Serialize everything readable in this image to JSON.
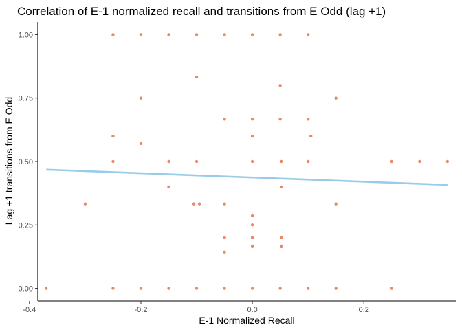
{
  "chart_data": {
    "type": "scatter",
    "title": "Correlation of E-1 normalized recall and transitions from E Odd (lag +1)",
    "xlabel": "E-1 Normalized Recall",
    "ylabel": "Lag +1 transitions from E Odd",
    "xlim": [
      -0.385,
      0.365
    ],
    "ylim": [
      -0.05,
      1.05
    ],
    "x_ticks": [
      -0.4,
      -0.2,
      0.0,
      0.2
    ],
    "x_tick_labels": [
      "-0.4",
      "-0.2",
      "0.0",
      "0.2"
    ],
    "y_ticks": [
      0.0,
      0.25,
      0.5,
      0.75,
      1.0
    ],
    "y_tick_labels": [
      "0.00",
      "0.25",
      "0.50",
      "0.75",
      "1.00"
    ],
    "grid": false,
    "point_color": "#E8896A",
    "line_color": "#99CCE8",
    "axis_color": "#000000",
    "points": [
      {
        "x": -0.25,
        "y": 1.0
      },
      {
        "x": -0.2,
        "y": 1.0
      },
      {
        "x": -0.15,
        "y": 1.0
      },
      {
        "x": -0.1,
        "y": 1.0
      },
      {
        "x": -0.05,
        "y": 1.0
      },
      {
        "x": 0.0,
        "y": 1.0
      },
      {
        "x": 0.05,
        "y": 1.0
      },
      {
        "x": 0.1,
        "y": 1.0
      },
      {
        "x": -0.1,
        "y": 0.833
      },
      {
        "x": 0.05,
        "y": 0.8
      },
      {
        "x": -0.2,
        "y": 0.75
      },
      {
        "x": 0.15,
        "y": 0.75
      },
      {
        "x": -0.05,
        "y": 0.667
      },
      {
        "x": 0.0,
        "y": 0.667
      },
      {
        "x": 0.05,
        "y": 0.667
      },
      {
        "x": 0.1,
        "y": 0.667
      },
      {
        "x": -0.25,
        "y": 0.6
      },
      {
        "x": 0.0,
        "y": 0.6
      },
      {
        "x": 0.105,
        "y": 0.6
      },
      {
        "x": -0.2,
        "y": 0.571
      },
      {
        "x": -0.25,
        "y": 0.5
      },
      {
        "x": -0.15,
        "y": 0.5
      },
      {
        "x": -0.1,
        "y": 0.5
      },
      {
        "x": 0.0,
        "y": 0.5
      },
      {
        "x": 0.052,
        "y": 0.5
      },
      {
        "x": 0.1,
        "y": 0.5
      },
      {
        "x": 0.25,
        "y": 0.5
      },
      {
        "x": 0.3,
        "y": 0.5
      },
      {
        "x": 0.35,
        "y": 0.5
      },
      {
        "x": -0.15,
        "y": 0.4
      },
      {
        "x": 0.052,
        "y": 0.4
      },
      {
        "x": -0.3,
        "y": 0.333
      },
      {
        "x": -0.105,
        "y": 0.333
      },
      {
        "x": -0.095,
        "y": 0.333
      },
      {
        "x": -0.05,
        "y": 0.333
      },
      {
        "x": 0.15,
        "y": 0.333
      },
      {
        "x": 0.0,
        "y": 0.286
      },
      {
        "x": 0.0,
        "y": 0.25
      },
      {
        "x": -0.05,
        "y": 0.2
      },
      {
        "x": 0.0,
        "y": 0.2
      },
      {
        "x": 0.052,
        "y": 0.2
      },
      {
        "x": 0.0,
        "y": 0.167
      },
      {
        "x": 0.052,
        "y": 0.167
      },
      {
        "x": -0.05,
        "y": 0.143
      },
      {
        "x": -0.37,
        "y": 0.0
      },
      {
        "x": -0.25,
        "y": 0.0
      },
      {
        "x": -0.2,
        "y": 0.0
      },
      {
        "x": -0.15,
        "y": 0.0
      },
      {
        "x": -0.1,
        "y": 0.0
      },
      {
        "x": -0.05,
        "y": 0.0
      },
      {
        "x": 0.0,
        "y": 0.0
      },
      {
        "x": 0.05,
        "y": 0.0
      },
      {
        "x": 0.1,
        "y": 0.0
      },
      {
        "x": 0.15,
        "y": 0.0
      },
      {
        "x": 0.25,
        "y": 0.0
      }
    ],
    "trend_line": {
      "x": [
        -0.37,
        0.35
      ],
      "y": [
        0.468,
        0.408
      ]
    }
  }
}
